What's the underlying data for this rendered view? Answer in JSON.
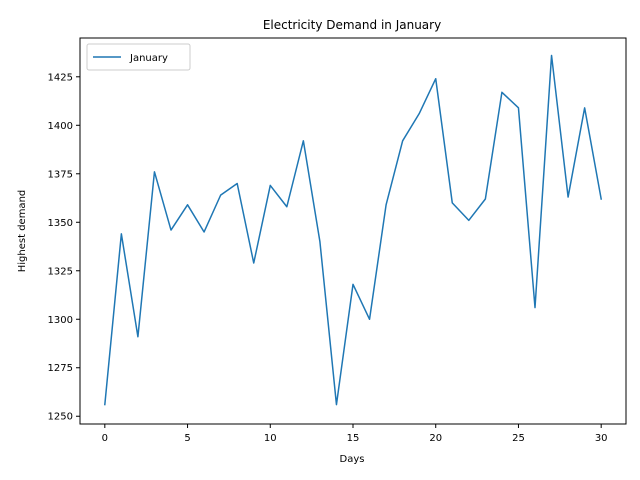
{
  "chart_data": {
    "type": "line",
    "title": "Electricity Demand in January",
    "xlabel": "Days",
    "ylabel": "Highest demand",
    "xlim": [
      -1.5,
      31.5
    ],
    "ylim": [
      1246.0,
      1445.0
    ],
    "xticks": [
      0,
      5,
      10,
      15,
      20,
      25,
      30
    ],
    "yticks": [
      1250,
      1275,
      1300,
      1325,
      1350,
      1375,
      1400,
      1425
    ],
    "grid": false,
    "legend_position": "upper-left",
    "x": [
      0,
      1,
      2,
      3,
      4,
      5,
      6,
      7,
      8,
      9,
      10,
      11,
      12,
      13,
      14,
      15,
      16,
      17,
      18,
      19,
      20,
      21,
      22,
      23,
      24,
      25,
      26,
      27,
      28,
      29,
      30
    ],
    "series": [
      {
        "name": "January",
        "color": "#1f77b4",
        "values": [
          1256,
          1344,
          1291,
          1376,
          1346,
          1359,
          1345,
          1364,
          1370,
          1329,
          1369,
          1358,
          1392,
          1340,
          1256,
          1318,
          1300,
          1359,
          1392,
          1406,
          1424,
          1360,
          1351,
          1362,
          1417,
          1409,
          1306,
          1436,
          1363,
          1409,
          1362
        ]
      }
    ]
  }
}
